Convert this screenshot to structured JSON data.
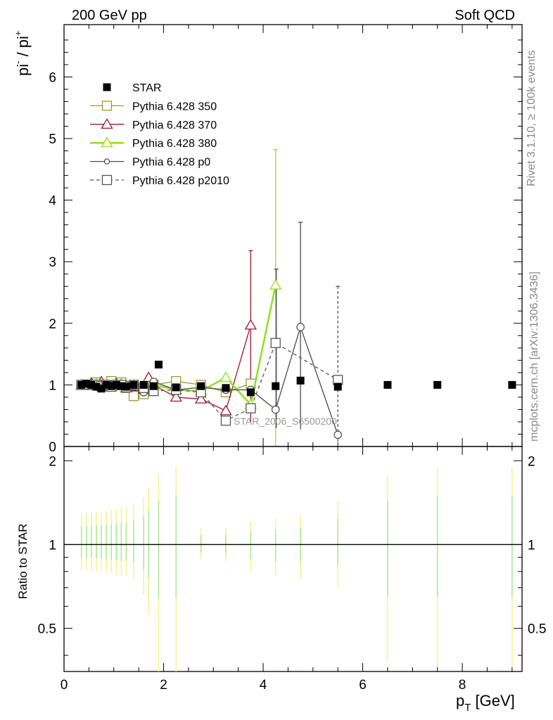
{
  "header": {
    "left": "200 GeV pp",
    "right": "Soft QCD"
  },
  "side_labels": {
    "rivet": "Rivet 3.1.10, ≥ 100k events",
    "mcplots": "mcplots.cern.ch [arXiv:1306.3436]"
  },
  "analysis_label": "STAR_2006_S6500200",
  "chart_data": [
    {
      "type": "scatter",
      "title": "",
      "xlabel": "p_T [GeV]",
      "ylabel": "pi⁻ / pi⁺",
      "xlim": [
        0,
        9.2
      ],
      "ylim": [
        0,
        6.85
      ],
      "x_ticks": [
        "0",
        "2",
        "4",
        "6",
        "8"
      ],
      "y_ticks": [
        "0",
        "1",
        "2",
        "3",
        "4",
        "5",
        "6"
      ],
      "legend_position": "top-left",
      "series": [
        {
          "name": "STAR",
          "color": "#000000",
          "marker": "filled-square",
          "line": "none",
          "x": [
            0.35,
            0.45,
            0.55,
            0.65,
            0.75,
            0.85,
            0.95,
            1.05,
            1.15,
            1.25,
            1.4,
            1.6,
            1.8,
            1.9,
            2.25,
            2.75,
            3.25,
            3.75,
            4.25,
            4.75,
            5.5,
            6.5,
            7.5,
            9.0
          ],
          "y": [
            1.0,
            1.02,
            1.0,
            0.97,
            0.94,
            1.0,
            0.98,
            1.0,
            0.98,
            0.97,
            1.0,
            1.0,
            0.98,
            1.33,
            0.96,
            0.98,
            0.95,
            0.88,
            0.98,
            1.07,
            0.97,
            1.0,
            1.0,
            1.0
          ]
        },
        {
          "name": "Pythia 6.428 350",
          "color": "#9a9a30",
          "marker": "open-square",
          "line": "solid",
          "x": [
            0.35,
            0.45,
            0.55,
            0.65,
            0.75,
            0.85,
            0.95,
            1.05,
            1.15,
            1.25,
            1.4,
            1.6,
            1.8,
            2.25,
            2.75,
            3.25,
            3.75
          ],
          "y": [
            1.0,
            1.0,
            1.0,
            1.04,
            1.0,
            0.98,
            1.06,
            1.0,
            1.04,
            0.95,
            0.82,
            0.85,
            1.0,
            1.06,
            1.0,
            0.88,
            1.02
          ]
        },
        {
          "name": "Pythia 6.428 370",
          "color": "#a0142a",
          "marker": "open-triangle",
          "line": "solid",
          "x": [
            0.35,
            0.45,
            0.55,
            0.65,
            0.75,
            0.85,
            0.95,
            1.05,
            1.15,
            1.25,
            1.4,
            1.6,
            1.7,
            1.8,
            2.25,
            2.75,
            3.25,
            3.75
          ],
          "y": [
            1.0,
            1.0,
            1.03,
            1.0,
            1.05,
            1.0,
            0.98,
            1.02,
            1.0,
            0.95,
            0.97,
            0.93,
            1.12,
            1.0,
            0.8,
            0.77,
            0.58,
            1.97
          ]
        },
        {
          "name": "Pythia 6.428 380",
          "color": "#8ee01e",
          "marker": "open-triangle",
          "line": "solid",
          "x": [
            0.35,
            0.45,
            0.55,
            0.65,
            0.75,
            0.85,
            0.95,
            1.05,
            1.15,
            1.25,
            1.4,
            1.6,
            1.8,
            2.25,
            2.75,
            3.25,
            3.75,
            4.25
          ],
          "y": [
            1.0,
            1.0,
            1.0,
            1.02,
            1.0,
            1.0,
            0.97,
            1.0,
            1.02,
            1.0,
            1.0,
            1.0,
            1.0,
            0.92,
            0.9,
            1.12,
            0.68,
            2.62
          ]
        },
        {
          "name": "Pythia 6.428 p0",
          "color": "#4a4a4a",
          "marker": "open-circle",
          "line": "solid",
          "x": [
            0.35,
            0.45,
            0.55,
            0.65,
            0.75,
            0.85,
            0.95,
            1.05,
            1.15,
            1.25,
            1.4,
            1.6,
            1.8,
            2.25,
            2.75,
            3.25,
            3.75,
            4.25,
            4.75,
            5.5
          ],
          "y": [
            1.0,
            1.0,
            1.0,
            1.0,
            1.0,
            1.0,
            1.0,
            0.98,
            1.0,
            1.0,
            0.97,
            0.88,
            1.05,
            0.92,
            0.96,
            0.92,
            0.92,
            0.6,
            1.94,
            0.19
          ]
        },
        {
          "name": "Pythia 6.428 p2010",
          "color": "#555555",
          "marker": "open-square",
          "line": "dashed",
          "x": [
            0.35,
            0.45,
            0.55,
            0.65,
            0.75,
            0.85,
            0.95,
            1.05,
            1.15,
            1.25,
            1.4,
            1.6,
            1.8,
            2.25,
            2.75,
            3.25,
            3.75,
            4.25,
            5.5
          ],
          "y": [
            1.0,
            1.0,
            1.0,
            1.0,
            0.98,
            1.0,
            0.97,
            1.0,
            1.0,
            0.96,
            1.0,
            0.95,
            0.9,
            0.92,
            0.88,
            0.42,
            0.62,
            1.68,
            1.08
          ]
        }
      ],
      "error_bars": [
        {
          "series": "Pythia 6.428 370",
          "x": 3.75,
          "low": 0.4,
          "high": 3.18
        },
        {
          "series": "Pythia 6.428 380",
          "x": 4.25,
          "low": 0.0,
          "high": 4.82
        },
        {
          "series": "Pythia 6.428 p0",
          "x": 4.75,
          "low": 0.28,
          "high": 3.64
        },
        {
          "series": "Pythia 6.428 p2010",
          "x": 5.5,
          "low": 0.0,
          "high": 2.6
        },
        {
          "series": "Pythia 6.428 p0",
          "x": 4.25,
          "low": 0.3,
          "high": 2.88
        }
      ]
    },
    {
      "type": "scatter",
      "title": "",
      "xlabel": "p_T [GeV]",
      "ylabel": "Ratio to STAR",
      "xlim": [
        0,
        9.2
      ],
      "ylim": [
        0.35,
        2.25
      ],
      "y_ticks": [
        "0.5",
        "1",
        "2"
      ],
      "reference_line": 1.0,
      "uncertainty_bands": {
        "x": [
          0.35,
          0.45,
          0.55,
          0.65,
          0.75,
          0.85,
          0.95,
          1.05,
          1.15,
          1.25,
          1.4,
          1.6,
          1.7,
          1.9,
          2.25,
          2.75,
          3.25,
          3.75,
          4.25,
          4.75,
          5.5,
          6.5,
          7.5,
          9.0
        ],
        "low": [
          0.81,
          0.81,
          0.81,
          0.8,
          0.8,
          0.79,
          0.79,
          0.78,
          0.77,
          0.77,
          0.75,
          0.66,
          0.56,
          0.35,
          0.35,
          0.88,
          0.87,
          0.8,
          0.77,
          0.75,
          0.7,
          0.38,
          0.36,
          0.36
        ],
        "high": [
          1.3,
          1.3,
          1.3,
          1.31,
          1.31,
          1.32,
          1.33,
          1.34,
          1.35,
          1.36,
          1.4,
          1.48,
          1.6,
          1.79,
          1.92,
          1.15,
          1.15,
          1.21,
          1.24,
          1.27,
          1.43,
          1.77,
          1.9,
          1.9
        ],
        "color_outer": "#f4f48a",
        "color_inner": "#a8e89a"
      }
    }
  ]
}
